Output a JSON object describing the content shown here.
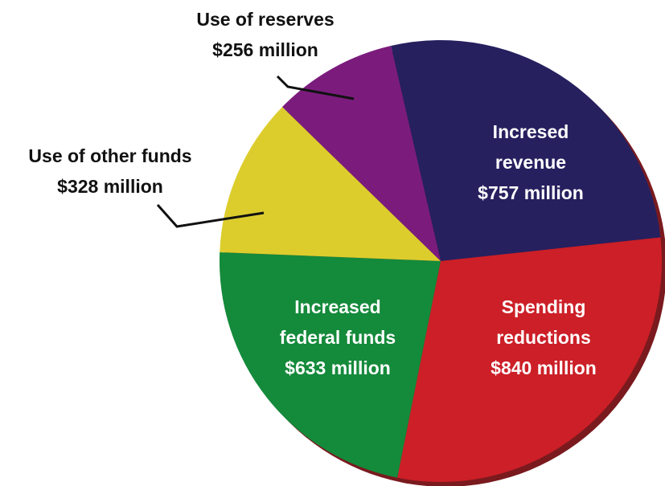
{
  "chart_data": {
    "type": "pie",
    "categories": [
      "Incresed revenue",
      "Spending reductions",
      "Increased federal funds",
      "Use of other funds",
      "Use of reserves"
    ],
    "values": [
      757,
      840,
      633,
      328,
      256
    ],
    "value_labels": [
      "$757 million",
      "$840 million",
      "$633 million",
      "$328 million",
      "$256 million"
    ],
    "colors": [
      "#26205f",
      "#cc1f27",
      "#148a3b",
      "#dccd2d",
      "#7b1c7d"
    ]
  }
}
